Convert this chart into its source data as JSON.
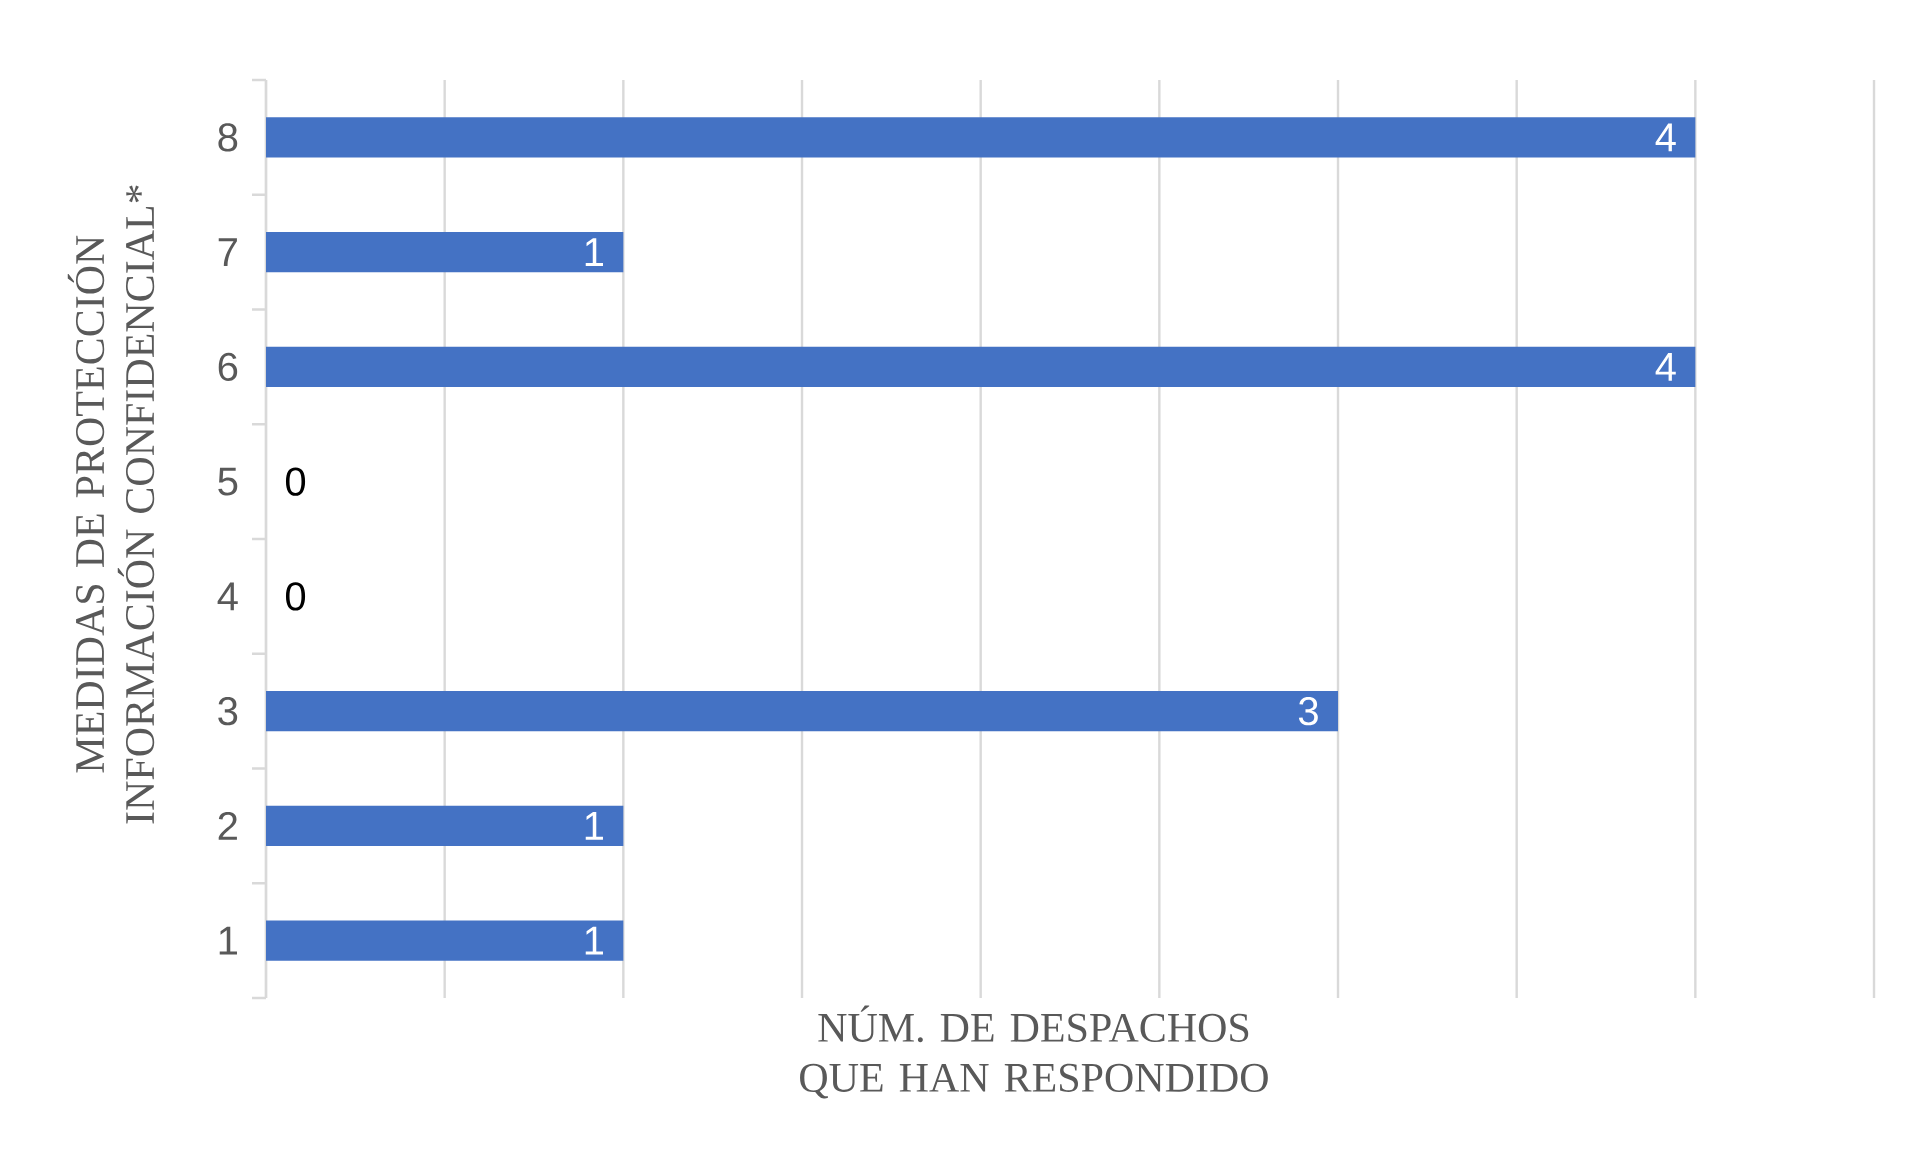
{
  "chart_data": {
    "type": "bar",
    "orientation": "horizontal",
    "xlabel": "NÚM. DE DESPACHOS QUE HAN RESPONDIDO",
    "ylabel": "MEDIDAS DE PROTECCIÓN INFORMACIÓN CONFIDENCIAL*",
    "categories": [
      "8",
      "7",
      "6",
      "5",
      "4",
      "3",
      "2",
      "1"
    ],
    "values": [
      4,
      1,
      4,
      0,
      0,
      3,
      1,
      1
    ],
    "color": "#4472c4",
    "xlim": [
      0,
      4.5
    ],
    "xticks": [
      {
        "value": 0,
        "label": null
      },
      {
        "value": 0.5,
        "label": null
      },
      {
        "value": 1,
        "label": null
      },
      {
        "value": 1.5,
        "label": null
      },
      {
        "value": 2,
        "label": null
      },
      {
        "value": 2.5,
        "label": null
      },
      {
        "value": 3,
        "label": null
      },
      {
        "value": 3.5,
        "label": null
      },
      {
        "value": 4,
        "label": null
      },
      {
        "value": 4.5,
        "label": null
      }
    ],
    "tick_labels": "y",
    "grid": "x",
    "data_labels": true
  }
}
